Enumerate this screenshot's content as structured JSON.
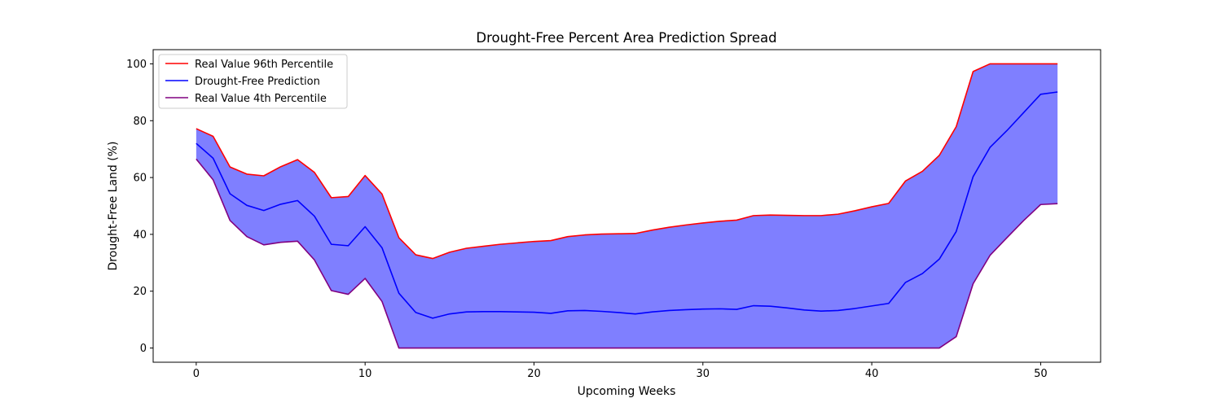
{
  "chart_data": {
    "type": "area",
    "title": "Drought-Free Percent Area Prediction Spread",
    "xlabel": "Upcoming Weeks",
    "ylabel": "Drought-Free Land (%)",
    "xlim": [
      -2.55,
      53.55
    ],
    "ylim": [
      -5,
      105
    ],
    "xticks": [
      0,
      10,
      20,
      30,
      40,
      50
    ],
    "yticks": [
      0,
      20,
      40,
      60,
      80,
      100
    ],
    "grid": false,
    "legend_position": "upper left",
    "fill": {
      "between": [
        "Real Value 96th Percentile",
        "Real Value 4th Percentile"
      ],
      "color": "#0000ff",
      "alpha": 0.5
    },
    "x": [
      0,
      1,
      2,
      3,
      4,
      5,
      6,
      7,
      8,
      9,
      10,
      11,
      12,
      13,
      14,
      15,
      16,
      17,
      18,
      19,
      20,
      21,
      22,
      23,
      24,
      25,
      26,
      27,
      28,
      29,
      30,
      31,
      32,
      33,
      34,
      35,
      36,
      37,
      38,
      39,
      40,
      41,
      42,
      43,
      44,
      45,
      46,
      47,
      48,
      49,
      50,
      51
    ],
    "series": [
      {
        "name": "Real Value 96th Percentile",
        "color": "#ff0000",
        "values": [
          77.2,
          74.5,
          63.7,
          61.2,
          60.6,
          63.8,
          66.3,
          61.8,
          52.9,
          53.3,
          60.7,
          54.2,
          38.8,
          32.8,
          31.5,
          33.7,
          35.1,
          35.8,
          36.5,
          37.0,
          37.5,
          37.8,
          39.2,
          39.8,
          40.1,
          40.2,
          40.3,
          41.5,
          42.5,
          43.3,
          44.0,
          44.6,
          45.0,
          46.6,
          46.8,
          46.7,
          46.6,
          46.6,
          47.1,
          48.3,
          49.7,
          50.9,
          58.8,
          62.2,
          67.8,
          77.9,
          97.3,
          100,
          100,
          100,
          100,
          100
        ]
      },
      {
        "name": "Drought-Free Prediction",
        "color": "#0000ff",
        "values": [
          72.0,
          66.8,
          54.3,
          50.2,
          48.4,
          50.6,
          51.9,
          46.4,
          36.5,
          36.0,
          42.7,
          35.3,
          19.3,
          12.5,
          10.5,
          12.0,
          12.7,
          12.8,
          12.8,
          12.7,
          12.6,
          12.2,
          13.1,
          13.2,
          12.9,
          12.5,
          12.0,
          12.7,
          13.2,
          13.5,
          13.7,
          13.8,
          13.6,
          14.9,
          14.7,
          14.1,
          13.4,
          13.0,
          13.2,
          13.9,
          14.8,
          15.7,
          23.1,
          26.2,
          31.3,
          41.0,
          60.3,
          70.6,
          76.5,
          82.9,
          89.3,
          90.1
        ]
      },
      {
        "name": "Real Value 4th Percentile",
        "color": "#800080",
        "values": [
          66.5,
          59.2,
          44.9,
          39.2,
          36.3,
          37.2,
          37.6,
          31.0,
          20.2,
          18.9,
          24.5,
          16.4,
          0,
          0,
          0,
          0,
          0,
          0,
          0,
          0,
          0,
          0,
          0,
          0,
          0,
          0,
          0,
          0,
          0,
          0,
          0,
          0,
          0,
          0,
          0,
          0,
          0,
          0,
          0,
          0,
          0,
          0,
          0,
          0,
          0,
          4.0,
          22.6,
          32.6,
          38.8,
          44.9,
          50.5,
          50.8
        ]
      }
    ]
  }
}
